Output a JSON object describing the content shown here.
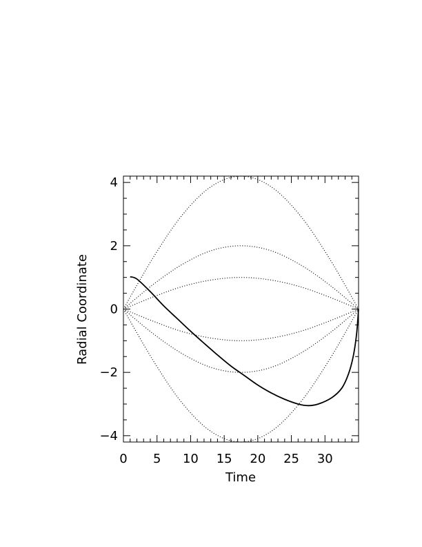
{
  "chart_data": {
    "type": "line",
    "xlabel": "Time",
    "ylabel": "Radial Coordinate",
    "xlim": [
      0,
      35
    ],
    "ylim": [
      -4.2,
      4.2
    ],
    "x_ticks": [
      0,
      5,
      10,
      15,
      20,
      25,
      30
    ],
    "x_tick_labels": [
      "0",
      "5",
      "10",
      "15",
      "20",
      "25",
      "30"
    ],
    "y_ticks": [
      -4,
      -2,
      0,
      2,
      4
    ],
    "y_tick_labels": [
      "−4",
      "−2",
      "0",
      "2",
      "4"
    ],
    "grid": false,
    "series": [
      {
        "style": "dotted",
        "x": [
          0,
          4.38,
          8.75,
          13.13,
          17.5,
          21.88,
          26.25,
          30.63,
          35
        ],
        "y": [
          0,
          1.61,
          2.97,
          3.88,
          4.2,
          3.88,
          2.97,
          1.61,
          0
        ]
      },
      {
        "style": "dotted",
        "x": [
          0,
          4.38,
          8.75,
          13.13,
          17.5,
          21.88,
          26.25,
          30.63,
          35
        ],
        "y": [
          0,
          -1.61,
          -2.97,
          -3.88,
          -4.2,
          -3.88,
          -2.97,
          -1.61,
          0
        ]
      },
      {
        "style": "dotted",
        "x": [
          0,
          4.38,
          8.75,
          13.13,
          17.5,
          21.88,
          26.25,
          30.63,
          35
        ],
        "y": [
          0,
          0.77,
          1.41,
          1.85,
          2.0,
          1.85,
          1.41,
          0.77,
          0
        ]
      },
      {
        "style": "dotted",
        "x": [
          0,
          4.38,
          8.75,
          13.13,
          17.5,
          21.88,
          26.25,
          30.63,
          35
        ],
        "y": [
          0,
          -0.77,
          -1.41,
          -1.85,
          -2.0,
          -1.85,
          -1.41,
          -0.77,
          0
        ]
      },
      {
        "style": "dotted",
        "x": [
          0,
          4.38,
          8.75,
          13.13,
          17.5,
          21.88,
          26.25,
          30.63,
          35
        ],
        "y": [
          0,
          0.38,
          0.71,
          0.92,
          1.0,
          0.92,
          0.71,
          0.38,
          0
        ]
      },
      {
        "style": "dotted",
        "x": [
          0,
          4.38,
          8.75,
          13.13,
          17.5,
          21.88,
          26.25,
          30.63,
          35
        ],
        "y": [
          0,
          -0.38,
          -0.71,
          -0.92,
          -1.0,
          -0.92,
          -0.71,
          -0.38,
          0
        ]
      },
      {
        "style": "solid",
        "x": [
          1.0,
          2.0,
          4.0,
          6.0,
          8.0,
          10.0,
          12.0,
          14.0,
          16.0,
          18.0,
          20.0,
          22.0,
          24.0,
          26.0,
          27.5,
          29.0,
          31.0,
          32.5,
          33.5,
          34.2,
          34.7,
          35.0
        ],
        "y": [
          1.02,
          0.95,
          0.55,
          0.1,
          -0.3,
          -0.7,
          -1.08,
          -1.45,
          -1.8,
          -2.1,
          -2.4,
          -2.65,
          -2.85,
          -3.0,
          -3.05,
          -3.0,
          -2.8,
          -2.5,
          -2.05,
          -1.5,
          -0.8,
          0.0
        ]
      }
    ]
  }
}
